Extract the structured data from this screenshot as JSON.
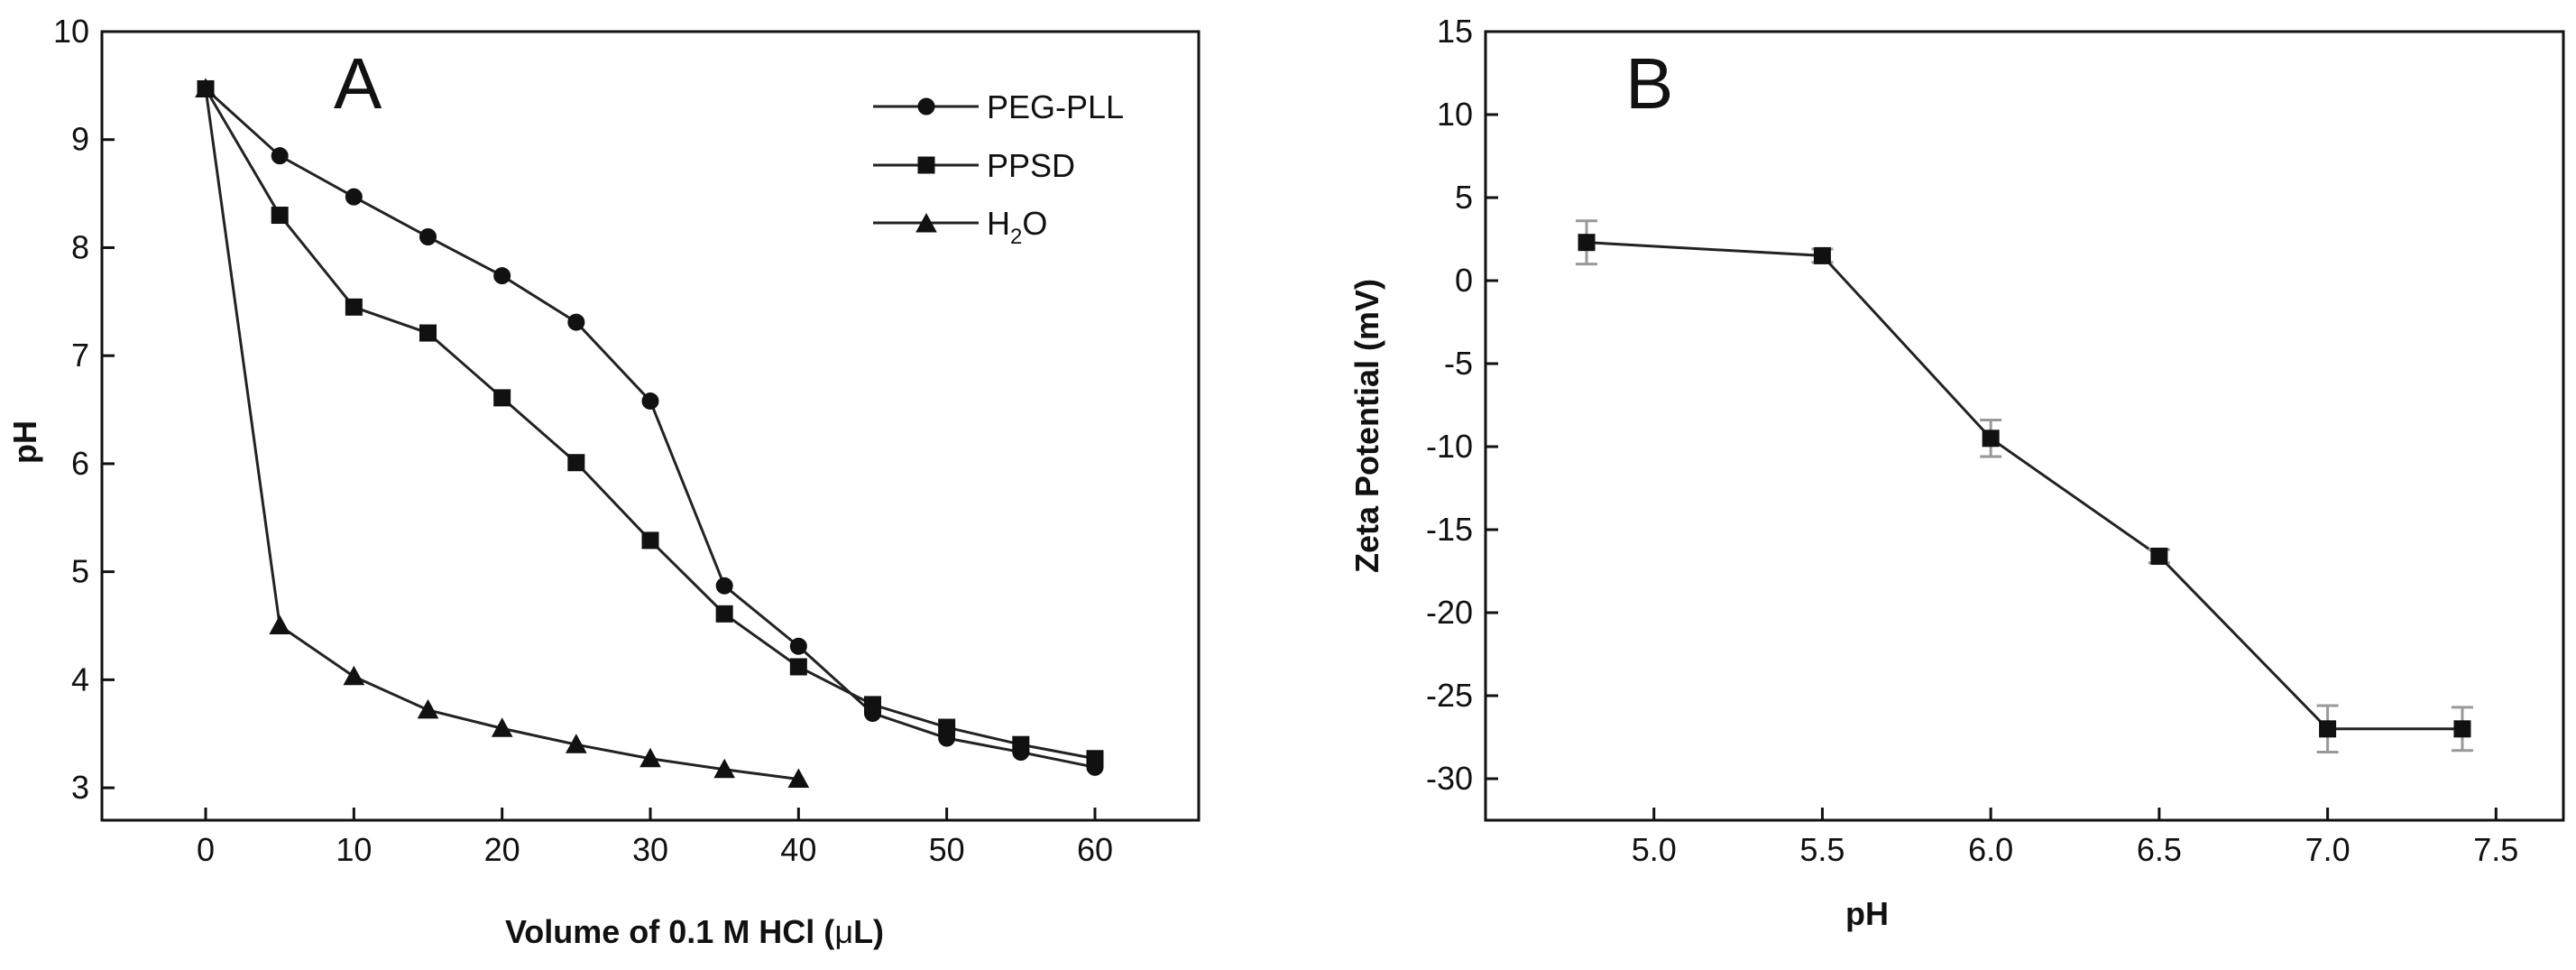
{
  "chart_data": [
    {
      "type": "line",
      "panel": "A",
      "xlabel_prefix": "Volume of 0.1 M HCl (",
      "xlabel_mu": "μ",
      "xlabel_suffix": "L)",
      "ylabel": "pH",
      "xlim": [
        -7,
        67
      ],
      "ylim": [
        2.7,
        10
      ],
      "xticks": [
        0,
        10,
        20,
        30,
        40,
        50,
        60
      ],
      "yticks": [
        3,
        4,
        5,
        6,
        7,
        8,
        9,
        10
      ],
      "legend_position": "top-right",
      "series": [
        {
          "name": "PEG-PLL",
          "marker": "circle",
          "x": [
            0,
            5,
            10,
            15,
            20,
            25,
            30,
            35,
            40,
            45,
            50,
            55,
            60
          ],
          "y": [
            9.47,
            8.85,
            8.47,
            8.1,
            7.74,
            7.31,
            6.58,
            4.87,
            4.31,
            3.69,
            3.46,
            3.33,
            3.19
          ]
        },
        {
          "name": "PPSD",
          "marker": "square",
          "x": [
            0,
            5,
            10,
            15,
            20,
            25,
            30,
            35,
            40,
            45,
            50,
            55,
            60
          ],
          "y": [
            9.47,
            8.3,
            7.45,
            7.21,
            6.61,
            6.01,
            5.29,
            4.61,
            4.12,
            3.77,
            3.56,
            3.4,
            3.27
          ]
        },
        {
          "name_main": "H",
          "name_sub": "2",
          "name_tail": "O",
          "marker": "triangle",
          "x": [
            0,
            5,
            10,
            15,
            20,
            25,
            30,
            35,
            40
          ],
          "y": [
            9.47,
            4.5,
            4.03,
            3.72,
            3.55,
            3.4,
            3.27,
            3.17,
            3.08
          ]
        }
      ]
    },
    {
      "type": "line",
      "panel": "B",
      "xlabel": "pH",
      "ylabel": "Zeta Potential (mV)",
      "xlim": [
        4.5,
        7.7
      ],
      "ylim": [
        -32.5,
        15
      ],
      "xticks": [
        "5.0",
        "5.5",
        "6.0",
        "6.5",
        "7.0",
        "7.5"
      ],
      "yticks": [
        "15",
        "10",
        "5",
        "0",
        "-5",
        "-10",
        "-15",
        "-20",
        "-25",
        "-30"
      ],
      "series": [
        {
          "name": "Zeta Potential",
          "marker": "square",
          "x": [
            4.8,
            5.5,
            6.0,
            6.5,
            7.0,
            7.4
          ],
          "y": [
            2.3,
            1.5,
            -9.5,
            -16.6,
            -27.0,
            -27.0
          ],
          "error": [
            1.3,
            0.4,
            1.1,
            0.4,
            1.4,
            1.3
          ]
        }
      ]
    }
  ]
}
